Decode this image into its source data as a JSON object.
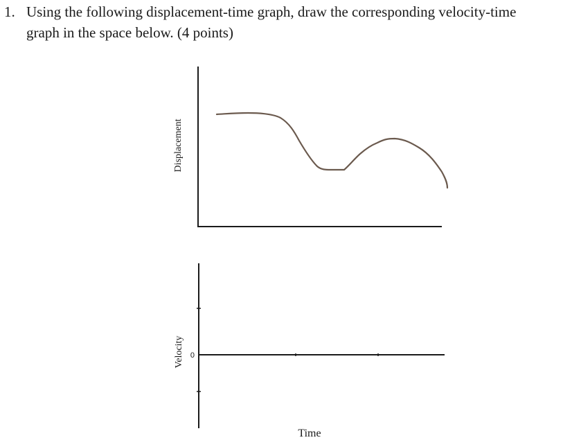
{
  "question": {
    "number": "1.",
    "line1": "Using the following displacement-time graph, draw the corresponding velocity-time",
    "line2": "graph in the space below. (4 points)"
  },
  "top_graph": {
    "ylabel": "Displacement"
  },
  "bottom_graph": {
    "ylabel": "Velocity",
    "zero_label": "0",
    "xlabel": "Time"
  },
  "colors": {
    "curve": "#6b5a4e",
    "axis": "#1a1a1a"
  }
}
